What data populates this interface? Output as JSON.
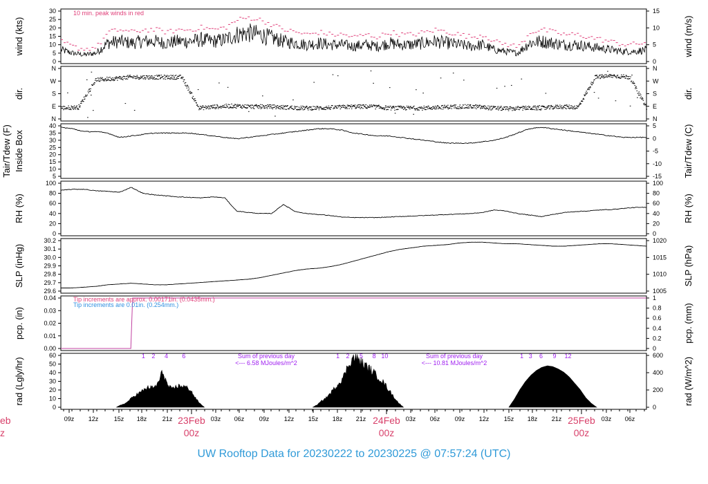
{
  "title": "UW Rooftop Data for 20230222  to  20230225 @ 07:57:24  (UTC)",
  "colors": {
    "peak": "#e0407a",
    "day": "#d8406a",
    "precip_line": "#c040a0",
    "note2": "#3090e0",
    "rad_annot": "#a020f0",
    "title": "#2f9ad8"
  },
  "x_axis": {
    "ticks": [
      "09z",
      "12z",
      "15z",
      "18z",
      "21z",
      "03z",
      "06z",
      "09z",
      "12z",
      "15z",
      "18z",
      "21z",
      "03z",
      "06z",
      "09z",
      "12z",
      "15z",
      "18z",
      "21z",
      "03z",
      "06z"
    ],
    "day_labels": [
      {
        "date": "23Feb",
        "hour": "00z"
      },
      {
        "date": "24Feb",
        "hour": "00z"
      },
      {
        "date": "25Feb",
        "hour": "00z"
      }
    ],
    "left_day_partial": {
      "date": "eb",
      "hour": "z"
    }
  },
  "chart_data": [
    {
      "type": "line",
      "panel": "wind",
      "ylabel_left": "wind (kts)",
      "ylabel_right": "wind (m/s)",
      "yticks_left": [
        "30",
        "25",
        "20",
        "15",
        "10",
        "5",
        "0"
      ],
      "yticks_right": [
        "15",
        "10",
        "5",
        "0"
      ],
      "ylim": [
        0,
        30
      ],
      "annotation": "10 min. peak winds in red",
      "series": [
        {
          "values": [
            7,
            5,
            4,
            5,
            11,
            12,
            11,
            12,
            12,
            11,
            12,
            12,
            13,
            12,
            13,
            16,
            17,
            16,
            14,
            12,
            11,
            10,
            11,
            10,
            10,
            9,
            10,
            9,
            11,
            10,
            10,
            11,
            12,
            11,
            10,
            9,
            10,
            7,
            6,
            5,
            11,
            12,
            11,
            10,
            10,
            9,
            8,
            7,
            6,
            6,
            7
          ]
        }
      ]
    },
    {
      "type": "scatter",
      "panel": "dir",
      "ylabel_left": "dir.",
      "ylabel_right": "dir.",
      "yticks_left": [
        "N",
        "W",
        "S",
        "E",
        "N"
      ],
      "yticks_right": [
        "N",
        "W",
        "S",
        "E",
        "N"
      ],
      "series": [
        {
          "values": [
            80,
            85,
            280,
            290,
            300,
            300,
            300,
            300,
            80,
            90,
            95,
            90,
            90,
            85,
            80,
            80,
            85,
            90,
            90,
            80,
            80,
            80,
            85,
            90,
            90,
            80,
            75,
            80,
            80,
            90,
            85,
            300,
            310,
            300,
            80
          ]
        }
      ]
    },
    {
      "type": "line",
      "panel": "temp",
      "ylabel_left_1": "Tair/Tdew (F)",
      "ylabel_left_2": "Inside Box",
      "ylabel_right": "Tair/Tdew (C)",
      "yticks_left": [
        "40",
        "35",
        "30",
        "25",
        "20",
        "15",
        "10",
        "5"
      ],
      "yticks_right": [
        "5",
        "0",
        "-5",
        "-10",
        "-15"
      ],
      "ylim": [
        5,
        40
      ],
      "series": [
        {
          "values": [
            39,
            38,
            36,
            36,
            35,
            32,
            33,
            34,
            35,
            35,
            35,
            35,
            34,
            33,
            32,
            31,
            32,
            33,
            34,
            35,
            36,
            37,
            38,
            38,
            37,
            35,
            34,
            33,
            33,
            32,
            31,
            30,
            29,
            28,
            28,
            28,
            29,
            30,
            32,
            35,
            38,
            39,
            38,
            37,
            36,
            35,
            34,
            33,
            32,
            32,
            32
          ]
        }
      ]
    },
    {
      "type": "line",
      "panel": "rh",
      "ylabel_left": "RH (%)",
      "ylabel_right": "RH (%)",
      "yticks_left": [
        "100",
        "80",
        "60",
        "40",
        "20",
        "0"
      ],
      "yticks_right": [
        "100",
        "80",
        "60",
        "40",
        "20",
        "0"
      ],
      "ylim": [
        0,
        100
      ],
      "series": [
        {
          "values": [
            86,
            88,
            88,
            85,
            84,
            82,
            92,
            80,
            77,
            75,
            73,
            72,
            71,
            73,
            71,
            45,
            42,
            40,
            40,
            58,
            44,
            40,
            38,
            36,
            33,
            32,
            32,
            32,
            33,
            34,
            35,
            36,
            37,
            38,
            39,
            40,
            42,
            47,
            45,
            40,
            37,
            34,
            38,
            42,
            44,
            45,
            47,
            48,
            50,
            52,
            52
          ]
        }
      ]
    },
    {
      "type": "line",
      "panel": "slp",
      "ylabel_left": "SLP (inHg)",
      "ylabel_right": "SLP (hPa)",
      "yticks_left": [
        "30.2",
        "30.1",
        "30.0",
        "29.9",
        "29.8",
        "29.7",
        "29.6"
      ],
      "yticks_right": [
        "1020",
        "1015",
        "1010",
        "1005"
      ],
      "ylim": [
        29.58,
        30.22
      ],
      "series": [
        {
          "values": [
            29.62,
            29.62,
            29.63,
            29.64,
            29.66,
            29.67,
            29.68,
            29.67,
            29.66,
            29.66,
            29.67,
            29.68,
            29.69,
            29.7,
            29.71,
            29.72,
            29.73,
            29.75,
            29.78,
            29.81,
            29.84,
            29.86,
            29.87,
            29.89,
            29.92,
            29.96,
            30.0,
            30.04,
            30.08,
            30.11,
            30.13,
            30.15,
            30.16,
            30.17,
            30.19,
            30.2,
            30.2,
            30.19,
            30.18,
            30.18,
            30.17,
            30.16,
            30.15,
            30.15,
            30.16,
            30.17,
            30.18,
            30.18,
            30.17,
            30.16,
            30.15
          ]
        }
      ]
    },
    {
      "type": "line",
      "panel": "pcp",
      "ylabel_left": "pcp. (in)",
      "ylabel_right": "pcp. (mm)",
      "yticks_left": [
        "0.04",
        "0.03",
        "0.02",
        "0.01",
        "0.00"
      ],
      "yticks_right": [
        "1",
        "0.8",
        "0.6",
        "0.4",
        "0.2",
        "0"
      ],
      "ylim": [
        0,
        0.04
      ],
      "note1": "Tip increments are approx. 0.00171in. (0.0435mm.)",
      "note2": "Tip increments are 0.01in. (0.254mm.)",
      "series": [
        {
          "x": [
            0,
            0.1195,
            0.1225,
            1
          ],
          "values": [
            0,
            0,
            0.04,
            0.04
          ]
        }
      ]
    },
    {
      "type": "area",
      "panel": "rad",
      "ylabel_left": "rad (Lgly/hr)",
      "ylabel_right": "rad (W/m^2)",
      "yticks_left": [
        "60",
        "50",
        "40",
        "30",
        "20",
        "10",
        "0"
      ],
      "yticks_right": [
        "600",
        "400",
        "200",
        "0"
      ],
      "ylim": [
        0,
        65
      ],
      "hour_marks": [
        {
          "x": 0.141,
          "label": "1"
        },
        {
          "x": 0.158,
          "label": "2"
        },
        {
          "x": 0.18,
          "label": "4"
        },
        {
          "x": 0.21,
          "label": "6"
        },
        {
          "x": 0.473,
          "label": "1"
        },
        {
          "x": 0.49,
          "label": "2"
        },
        {
          "x": 0.513,
          "label": "5"
        },
        {
          "x": 0.535,
          "label": "8"
        },
        {
          "x": 0.553,
          "label": "10"
        },
        {
          "x": 0.787,
          "label": "1"
        },
        {
          "x": 0.802,
          "label": "3"
        },
        {
          "x": 0.82,
          "label": "6"
        },
        {
          "x": 0.843,
          "label": "9"
        },
        {
          "x": 0.866,
          "label": "12"
        }
      ],
      "daily_sums": [
        {
          "line1": "Sum of previous day",
          "line2": "<--- 6.58 MJoules/m^2"
        },
        {
          "line1": "Sum of previous day",
          "line2": "<--- 10.81 MJoules/m^2"
        }
      ],
      "series": [
        {
          "days": [
            {
              "start": 0.095,
              "end": 0.245,
              "shape": [
                0,
                3,
                5,
                10,
                15,
                18,
                22,
                25,
                24,
                30,
                45,
                28,
                22,
                26,
                27,
                25,
                22,
                12,
                5,
                0
              ]
            },
            {
              "start": 0.43,
              "end": 0.585,
              "shape": [
                0,
                3,
                8,
                12,
                18,
                25,
                32,
                40,
                55,
                62,
                60,
                55,
                50,
                46,
                40,
                35,
                28,
                20,
                12,
                5,
                0
              ]
            },
            {
              "start": 0.765,
              "end": 0.915,
              "shape": [
                0,
                10,
                22,
                32,
                40,
                46,
                50,
                52,
                51,
                48,
                44,
                38,
                30,
                22,
                12,
                5,
                0
              ]
            }
          ]
        }
      ]
    }
  ]
}
